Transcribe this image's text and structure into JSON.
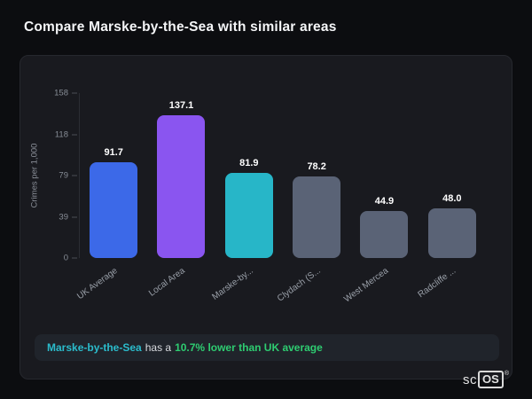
{
  "page": {
    "title": "Compare Marske-by-the-Sea with similar areas"
  },
  "chart_data": {
    "type": "bar",
    "ylabel": "Crimes per 1,000",
    "ylim": [
      0,
      158
    ],
    "yticks": [
      158,
      118,
      79,
      39,
      0
    ],
    "categories": [
      "UK Average",
      "Local Area",
      "Marske-by...",
      "Clydach (S...",
      "West Mercea",
      "Radcliffe ..."
    ],
    "values": [
      91.7,
      137.1,
      81.9,
      78.2,
      44.9,
      48.0
    ],
    "value_labels": [
      "91.7",
      "137.1",
      "81.9",
      "78.2",
      "44.9",
      "48.0"
    ],
    "bar_colors": [
      "#3c69e8",
      "#8a55f0",
      "#27b6c8",
      "#5a6376",
      "#5a6376",
      "#5a6376"
    ],
    "grid": false,
    "legend": "none"
  },
  "note": {
    "area": "Marske-by-the-Sea",
    "middle": "has a",
    "highlight": "10.7% lower than UK average",
    "area_color": "#2bbccc",
    "highlight_color": "#2ecc71"
  },
  "logo": {
    "prefix": "sc",
    "boxed": "OS",
    "reg": "®"
  }
}
